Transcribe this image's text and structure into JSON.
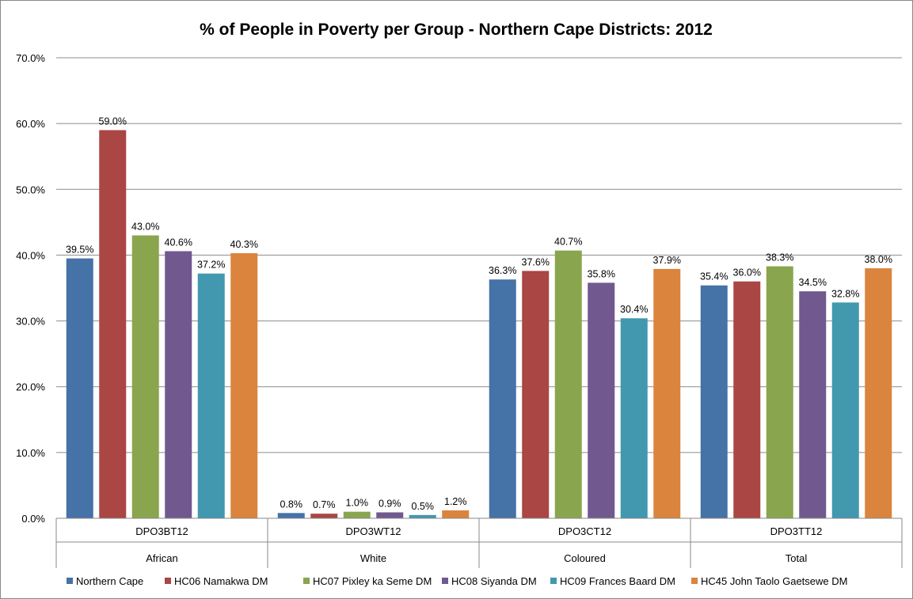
{
  "chart_data": {
    "type": "bar",
    "title": "% of People in Poverty per Group - Northern Cape Districts: 2012",
    "xlabel": "",
    "ylabel": "",
    "ylim": [
      0,
      70
    ],
    "y_tick_labels": [
      "0.0%",
      "10.0%",
      "20.0%",
      "30.0%",
      "40.0%",
      "50.0%",
      "60.0%",
      "70.0%"
    ],
    "grid": true,
    "legend_position": "bottom",
    "categories": [
      {
        "code": "DPO3BT12",
        "label": "African"
      },
      {
        "code": "DPO3WT12",
        "label": "White"
      },
      {
        "code": "DPO3CT12",
        "label": "Coloured"
      },
      {
        "code": "DPO3TT12",
        "label": "Total"
      }
    ],
    "series": [
      {
        "name": "Northern Cape",
        "color": "#4572A7",
        "values": [
          39.5,
          0.8,
          36.3,
          35.4
        ],
        "labels": [
          "39.5%",
          "0.8%",
          "36.3%",
          "35.4%"
        ]
      },
      {
        "name": "HC06 Namakwa DM",
        "color": "#AA4643",
        "values": [
          59.0,
          0.7,
          37.6,
          36.0
        ],
        "labels": [
          "59.0%",
          "0.7%",
          "37.6%",
          "36.0%"
        ]
      },
      {
        "name": "HC07 Pixley ka Seme DM",
        "color": "#89A54E",
        "values": [
          43.0,
          1.0,
          40.7,
          38.3
        ],
        "labels": [
          "43.0%",
          "1.0%",
          "40.7%",
          "38.3%"
        ]
      },
      {
        "name": "HC08 Siyanda DM",
        "color": "#71588F",
        "values": [
          40.6,
          0.9,
          35.8,
          34.5
        ],
        "labels": [
          "40.6%",
          "0.9%",
          "35.8%",
          "34.5%"
        ]
      },
      {
        "name": "HC09 Frances Baard DM",
        "color": "#4198AF",
        "values": [
          37.2,
          0.5,
          30.4,
          32.8
        ],
        "labels": [
          "37.2%",
          "0.5%",
          "30.4%",
          "32.8%"
        ]
      },
      {
        "name": "HC45 John Taolo Gaetsewe DM",
        "color": "#DB843D",
        "values": [
          40.3,
          1.2,
          37.9,
          38.0
        ],
        "labels": [
          "40.3%",
          "1.2%",
          "37.9%",
          "38.0%"
        ]
      }
    ]
  }
}
